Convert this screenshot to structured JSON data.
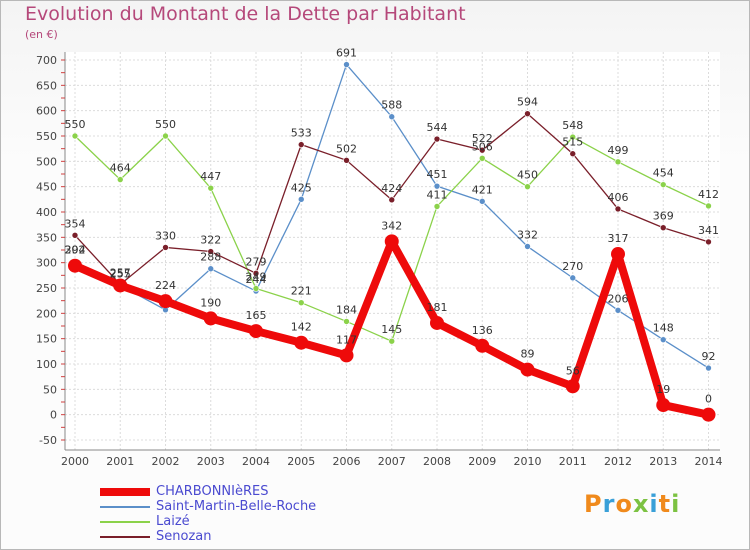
{
  "title": "Evolution du Montant de la Dette par Habitant",
  "subtitle": "(en €)",
  "logo": {
    "text": "Proxiti",
    "colors": [
      "#f08a1c",
      "#3aa0d8",
      "#f08a1c",
      "#7cc242",
      "#3aa0d8",
      "#f08a1c",
      "#7cc242"
    ]
  },
  "chart_data": {
    "type": "line",
    "x": [
      "2000",
      "2001",
      "2002",
      "2003",
      "2004",
      "2005",
      "2006",
      "2007",
      "2008",
      "2009",
      "2010",
      "2011",
      "2012",
      "2013",
      "2014"
    ],
    "yticks": [
      "-50",
      "0",
      "50",
      "100",
      "150",
      "200",
      "250",
      "300",
      "350",
      "400",
      "450",
      "500",
      "550",
      "600",
      "650",
      "700"
    ],
    "ylim": [
      -50,
      700
    ],
    "grid": true,
    "series": [
      {
        "name": "Saint-Martin-Belle-Roche",
        "color": "#5b8fc9",
        "values": [
          302,
          255,
          207,
          288,
          244,
          425,
          691,
          588,
          451,
          421,
          332,
          270,
          206,
          148,
          92
        ],
        "labels": [
          "302",
          "255",
          "",
          "288",
          "244",
          "425",
          "691",
          "588",
          "451",
          "421",
          "332",
          "270",
          "206",
          "148",
          "92"
        ]
      },
      {
        "name": "Laizé",
        "color": "#8bd24a",
        "values": [
          550,
          464,
          550,
          447,
          249,
          221,
          184,
          145,
          411,
          506,
          450,
          548,
          499,
          454,
          412
        ],
        "labels": [
          "550",
          "464",
          "550",
          "447",
          "249",
          "221",
          "184",
          "145",
          "411",
          "506",
          "450",
          "548",
          "499",
          "454",
          "412"
        ]
      },
      {
        "name": "Senozan",
        "color": "#7a1f2a",
        "values": [
          354,
          257,
          330,
          322,
          279,
          533,
          502,
          424,
          544,
          522,
          594,
          515,
          406,
          369,
          341
        ],
        "labels": [
          "354",
          "257",
          "330",
          "322",
          "279",
          "533",
          "502",
          "424",
          "544",
          "522",
          "594",
          "515",
          "406",
          "369",
          "341"
        ]
      },
      {
        "name": "CHARBONNIèRES",
        "color": "#ee0a0a",
        "thick": true,
        "values": [
          294,
          255,
          224,
          190,
          165,
          142,
          117,
          342,
          181,
          136,
          89,
          56,
          317,
          19,
          0
        ],
        "labels": [
          "294",
          "",
          "224",
          "190",
          "165",
          "142",
          "117",
          "342",
          "181",
          "136",
          "89",
          "56",
          "317",
          "19",
          "0"
        ]
      }
    ],
    "legend": [
      "CHARBONNIèRES",
      "Saint-Martin-Belle-Roche",
      "Laizé",
      "Senozan"
    ],
    "legend_position": "bottom-left"
  }
}
